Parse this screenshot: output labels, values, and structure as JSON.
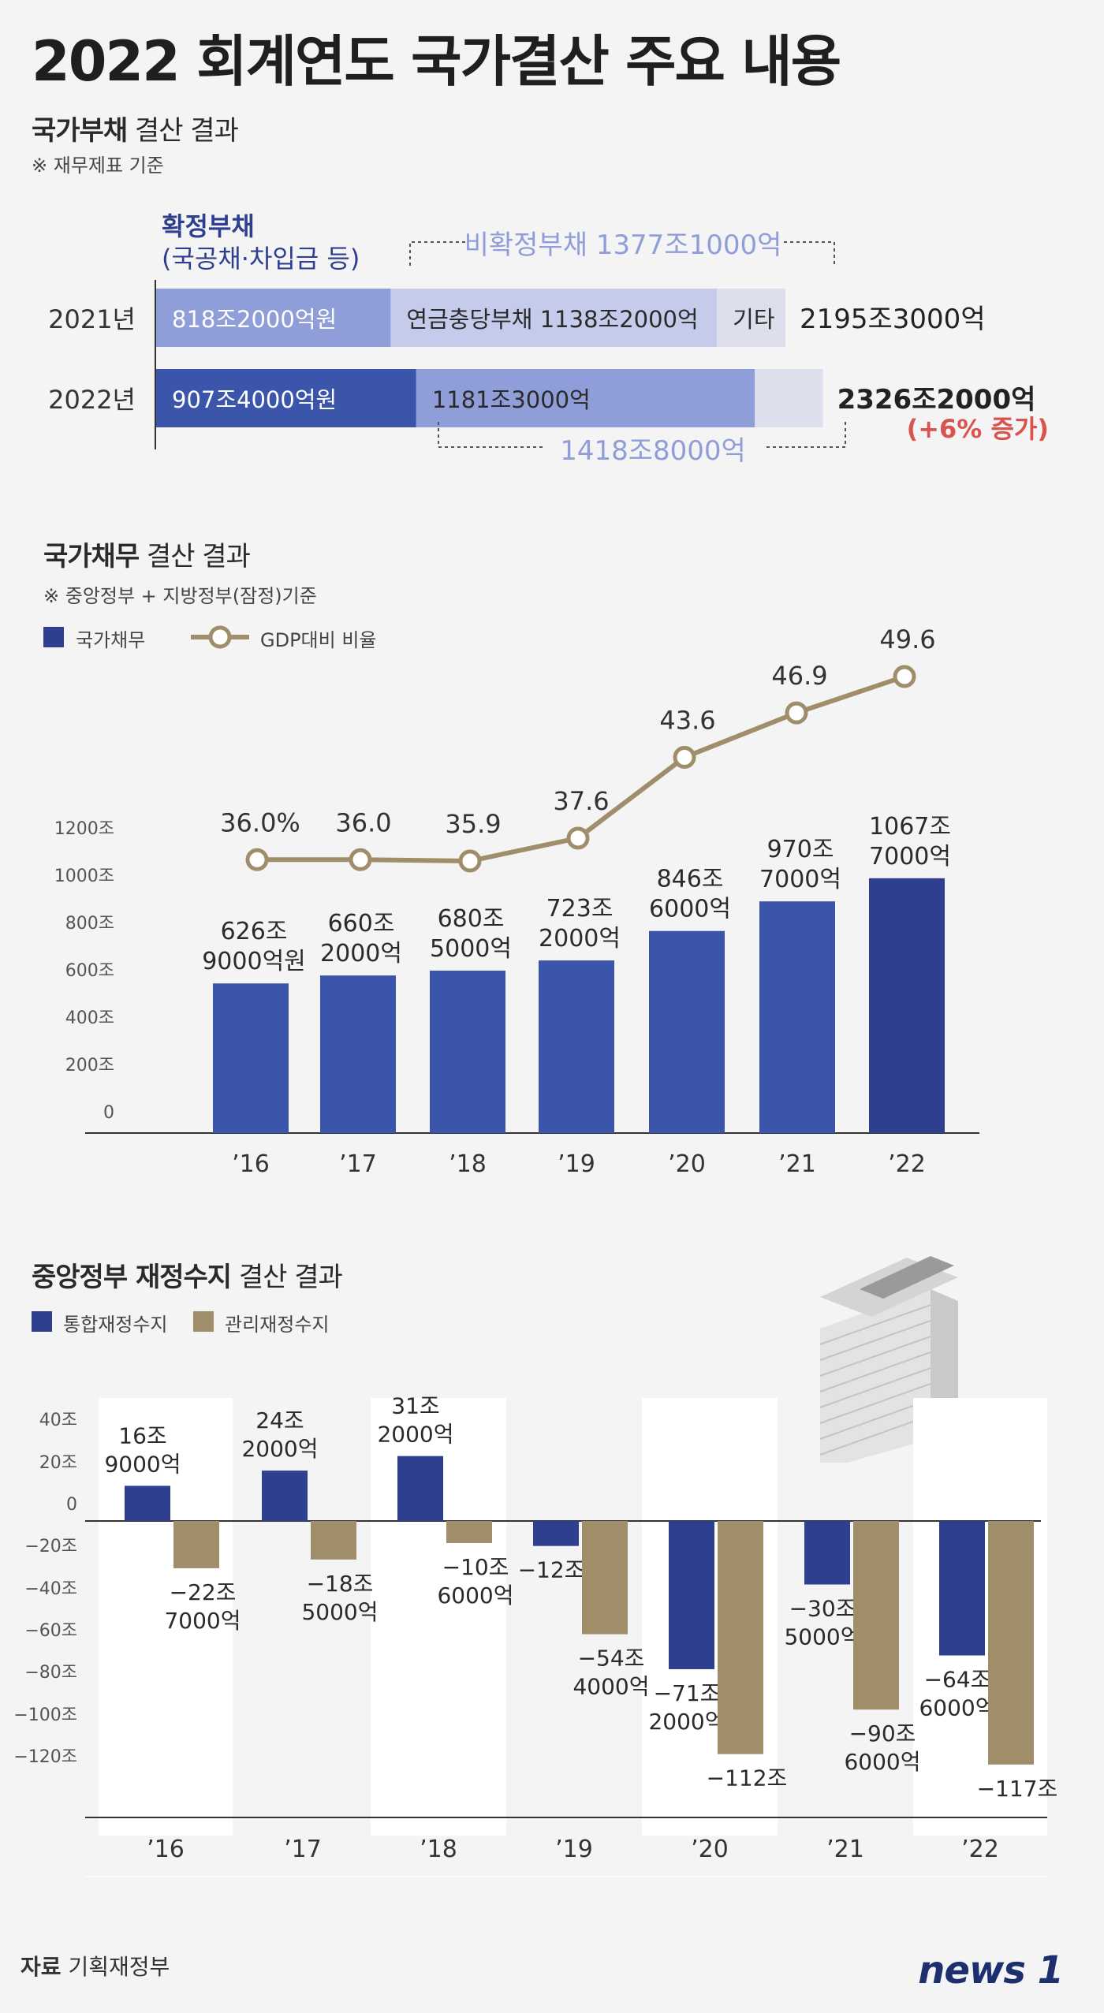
{
  "title": "2022 회계연도 국가결산 주요 내용",
  "source": {
    "label": "자료",
    "value": "기획재정부"
  },
  "logo": "news 1",
  "colors": {
    "navy": "#2f3f8f",
    "blue": "#3b55ab",
    "periwinkle": "#8f9ed8",
    "lightblue": "#c5cbea",
    "pale": "#dddfec",
    "tan": "#a08d6a",
    "red": "#d9534f"
  },
  "section1": {
    "title_bold": "국가부채",
    "title_rest": " 결산 결과",
    "note": "※ 재무제표 기준",
    "confirmed_label": "확정부채",
    "confirmed_sub": "(국공채·차입금 등)",
    "unconfirmed_2021": "비확정부채 1377조1000억",
    "unconfirmed_2022": "1418조8000억",
    "chart_data": {
      "type": "bar",
      "stacked": true,
      "orientation": "horizontal",
      "categories": [
        "2021년",
        "2022년"
      ],
      "series": [
        {
          "name": "확정부채",
          "values": [
            818.2,
            907.4
          ],
          "labels": [
            "818조2000억원",
            "907조4000억원"
          ]
        },
        {
          "name": "연금충당부채",
          "values": [
            1138.2,
            1181.3
          ],
          "labels": [
            "연금충당부채 1138조2000억",
            "1181조3000억"
          ]
        },
        {
          "name": "기타",
          "values": [
            238.9,
            237.5
          ],
          "labels": [
            "기타",
            ""
          ]
        }
      ],
      "totals": [
        "2195조3000억",
        "2326조2000억"
      ],
      "total_note": "(+6% 증가)"
    }
  },
  "section2": {
    "title_bold": "국가채무",
    "title_rest": " 결산 결과",
    "note": "※ 중앙정부 + 지방정부(잠정)기준",
    "legend": [
      {
        "label": "국가채무"
      },
      {
        "label": "GDP대비 비율"
      }
    ],
    "chart_data": {
      "type": "bar",
      "categories": [
        "’16",
        "’17",
        "’18",
        "’19",
        "’20",
        "’21",
        "’22"
      ],
      "series": [
        {
          "name": "국가채무",
          "values": [
            626.9,
            660.2,
            680.5,
            723.2,
            846.6,
            970.7,
            1067.7
          ],
          "labels": [
            [
              "626조",
              "9000억원"
            ],
            [
              "660조",
              "2000억"
            ],
            [
              "680조",
              "5000억"
            ],
            [
              "723조",
              "2000억"
            ],
            [
              "846조",
              "6000억"
            ],
            [
              "970조",
              "7000억"
            ],
            [
              "1067조",
              "7000억"
            ]
          ]
        },
        {
          "name": "GDP대비 비율",
          "type": "line",
          "values": [
            36.0,
            36.0,
            35.9,
            37.6,
            43.6,
            46.9,
            49.6
          ],
          "labels": [
            "36.0%",
            "36.0",
            "35.9",
            "37.6",
            "43.6",
            "46.9",
            "49.6"
          ]
        }
      ],
      "yticks": [
        "1200조",
        "1000조",
        "800조",
        "600조",
        "400조",
        "200조",
        "0"
      ],
      "ylim": [
        0,
        1200
      ]
    }
  },
  "section3": {
    "title_bold": "중앙정부 재정수지",
    "title_rest": " 결산 결과",
    "legend": [
      {
        "label": "통합재정수지"
      },
      {
        "label": "관리재정수지"
      }
    ],
    "chart_data": {
      "type": "bar",
      "categories": [
        "’16",
        "’17",
        "’18",
        "’19",
        "’20",
        "’21",
        "’22"
      ],
      "series": [
        {
          "name": "통합재정수지",
          "values": [
            16.9,
            24.2,
            31.2,
            -12.0,
            -71.2,
            -30.5,
            -64.6
          ],
          "labels": [
            [
              "16조",
              "9000억"
            ],
            [
              "24조",
              "2000억"
            ],
            [
              "31조",
              "2000억"
            ],
            [
              "−12조"
            ],
            [
              "−71조",
              "2000억"
            ],
            [
              "−30조",
              "5000억"
            ],
            [
              "−64조",
              "6000억"
            ]
          ]
        },
        {
          "name": "관리재정수지",
          "values": [
            -22.7,
            -18.5,
            -10.6,
            -54.4,
            -112.0,
            -90.6,
            -117.0
          ],
          "labels": [
            [
              "−22조",
              "7000억"
            ],
            [
              "−18조",
              "5000억"
            ],
            [
              "−10조",
              "6000억"
            ],
            [
              "−54조",
              "4000억"
            ],
            [
              "−112조"
            ],
            [
              "−90조",
              "6000억"
            ],
            [
              "−117조"
            ]
          ]
        }
      ],
      "yticks": [
        "40조",
        "20조",
        "0",
        "−20조",
        "−40조",
        "−60조",
        "−80조",
        "−100조",
        "−120조"
      ],
      "ylim": [
        -140,
        40
      ]
    }
  }
}
